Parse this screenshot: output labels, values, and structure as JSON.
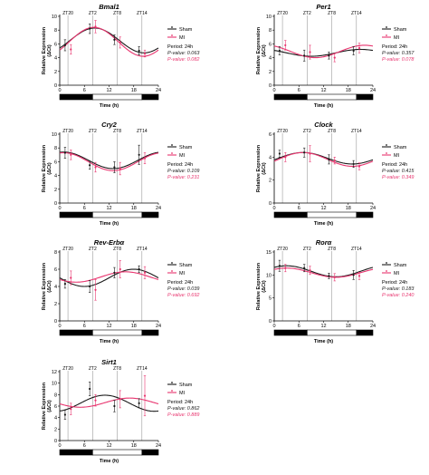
{
  "colors": {
    "sham": "#1a1a1a",
    "mi": "#e8356f"
  },
  "chart_data": [
    {
      "type": "line",
      "title": "Bmal1",
      "ylabel": "Relative Expression",
      "ylabel_unit": "(ΔCt)",
      "xlabel": "Time (h)",
      "xlim": [
        0,
        24
      ],
      "ylim": [
        0,
        10
      ],
      "xticks": [
        "0",
        "6",
        "12",
        "18",
        "24"
      ],
      "yticks": [
        "0",
        "2",
        "4",
        "6",
        "8",
        "10"
      ],
      "zt_labels": [
        {
          "x": 2,
          "label": "ZT20"
        },
        {
          "x": 8,
          "label": "ZT2"
        },
        {
          "x": 14,
          "label": "ZT8"
        },
        {
          "x": 20,
          "label": "ZT14"
        }
      ],
      "light_dark_bar": [
        {
          "from": 0,
          "to": 8,
          "phase": "dark"
        },
        {
          "from": 8,
          "to": 20,
          "phase": "light"
        },
        {
          "from": 20,
          "to": 24,
          "phase": "dark"
        }
      ],
      "legend": {
        "sham": "Sham",
        "mi": "MI",
        "period": "Period: 24h",
        "p_sham": "P-value: 0.063",
        "p_mi": "P-value: 0.082"
      },
      "series": [
        {
          "name": "Sham",
          "color": "#1a1a1a",
          "fit": {
            "mesor": 6.5,
            "amplitude": 1.8,
            "peak": 8.5
          },
          "points": [
            {
              "x": 2,
              "y": 5.8,
              "err": 0.8
            },
            {
              "x": 8,
              "y": 8.2,
              "err": 0.7
            },
            {
              "x": 14,
              "y": 6.6,
              "err": 0.7
            },
            {
              "x": 20,
              "y": 5.0,
              "err": 0.6
            }
          ]
        },
        {
          "name": "MI",
          "color": "#e8356f",
          "fit": {
            "mesor": 6.3,
            "amplitude": 2.1,
            "peak": 8.3
          },
          "points": [
            {
              "x": 2,
              "y": 5.2,
              "err": 0.7
            },
            {
              "x": 8,
              "y": 8.5,
              "err": 0.9
            },
            {
              "x": 14,
              "y": 6.2,
              "err": 0.8
            },
            {
              "x": 20,
              "y": 4.6,
              "err": 0.5
            }
          ]
        }
      ]
    },
    {
      "type": "line",
      "title": "Per1",
      "ylabel": "Relative Expression",
      "ylabel_unit": "(ΔCt)",
      "xlabel": "Time (h)",
      "xlim": [
        0,
        24
      ],
      "ylim": [
        0,
        10
      ],
      "xticks": [
        "0",
        "6",
        "12",
        "18",
        "24"
      ],
      "yticks": [
        "0",
        "2",
        "4",
        "6",
        "8",
        "10"
      ],
      "zt_labels": [
        {
          "x": 2,
          "label": "ZT20"
        },
        {
          "x": 8,
          "label": "ZT2"
        },
        {
          "x": 14,
          "label": "ZT8"
        },
        {
          "x": 20,
          "label": "ZT14"
        }
      ],
      "light_dark_bar": [
        {
          "from": 0,
          "to": 8,
          "phase": "dark"
        },
        {
          "from": 8,
          "to": 20,
          "phase": "light"
        },
        {
          "from": 20,
          "to": 24,
          "phase": "dark"
        }
      ],
      "legend": {
        "sham": "Sham",
        "mi": "MI",
        "period": "Period: 24h",
        "p_sham": "P-value: 0.357",
        "p_mi": "P-value: 0.078"
      },
      "series": [
        {
          "name": "Sham",
          "color": "#1a1a1a",
          "fit": {
            "mesor": 4.7,
            "amplitude": 0.5,
            "peak": 21
          },
          "points": [
            {
              "x": 2,
              "y": 5.0,
              "err": 0.6
            },
            {
              "x": 8,
              "y": 4.3,
              "err": 0.8
            },
            {
              "x": 14,
              "y": 4.3,
              "err": 0.5
            },
            {
              "x": 20,
              "y": 5.0,
              "err": 0.6
            }
          ]
        },
        {
          "name": "MI",
          "color": "#e8356f",
          "fit": {
            "mesor": 4.9,
            "amplitude": 0.9,
            "peak": 22
          },
          "points": [
            {
              "x": 2,
              "y": 5.8,
              "err": 0.7
            },
            {
              "x": 8,
              "y": 4.8,
              "err": 1.0
            },
            {
              "x": 14,
              "y": 4.0,
              "err": 0.6
            },
            {
              "x": 20,
              "y": 5.4,
              "err": 0.7
            }
          ]
        }
      ]
    },
    {
      "type": "line",
      "title": "Cry2",
      "ylabel": "Relative Expression",
      "ylabel_unit": "(ΔCt)",
      "xlabel": "Time (h)",
      "xlim": [
        0,
        24
      ],
      "ylim": [
        0,
        10
      ],
      "xticks": [
        "0",
        "6",
        "12",
        "18",
        "24"
      ],
      "yticks": [
        "0",
        "2",
        "4",
        "6",
        "8",
        "10"
      ],
      "zt_labels": [
        {
          "x": 2,
          "label": "ZT20"
        },
        {
          "x": 8,
          "label": "ZT2"
        },
        {
          "x": 14,
          "label": "ZT8"
        },
        {
          "x": 20,
          "label": "ZT14"
        }
      ],
      "light_dark_bar": [
        {
          "from": 0,
          "to": 8,
          "phase": "dark"
        },
        {
          "from": 8,
          "to": 20,
          "phase": "light"
        },
        {
          "from": 20,
          "to": 24,
          "phase": "dark"
        }
      ],
      "legend": {
        "sham": "Sham",
        "mi": "MI",
        "period": "Period: 24h",
        "p_sham": "P-value: 0.109",
        "p_mi": "P-value: 0.231"
      },
      "series": [
        {
          "name": "Sham",
          "color": "#1a1a1a",
          "fit": {
            "mesor": 6.2,
            "amplitude": 1.2,
            "peak": 1
          },
          "points": [
            {
              "x": 2,
              "y": 7.3,
              "err": 0.8
            },
            {
              "x": 8,
              "y": 5.5,
              "err": 0.6
            },
            {
              "x": 14,
              "y": 5.2,
              "err": 0.8
            },
            {
              "x": 20,
              "y": 7.0,
              "err": 1.4
            }
          ]
        },
        {
          "name": "MI",
          "color": "#e8356f",
          "fit": {
            "mesor": 6.0,
            "amplitude": 1.3,
            "peak": 1
          },
          "points": [
            {
              "x": 2,
              "y": 7.0,
              "err": 0.7
            },
            {
              "x": 8,
              "y": 5.2,
              "err": 0.7
            },
            {
              "x": 14,
              "y": 5.0,
              "err": 0.9
            },
            {
              "x": 20,
              "y": 6.5,
              "err": 0.8
            }
          ]
        }
      ]
    },
    {
      "type": "line",
      "title": "Clock",
      "ylabel": "Relative Expression",
      "ylabel_unit": "(ΔCt)",
      "xlabel": "Time (h)",
      "xlim": [
        0,
        24
      ],
      "ylim": [
        0,
        6
      ],
      "xticks": [
        "0",
        "6",
        "12",
        "18",
        "24"
      ],
      "yticks": [
        "0",
        "2",
        "4",
        "6"
      ],
      "zt_labels": [
        {
          "x": 2,
          "label": "ZT20"
        },
        {
          "x": 8,
          "label": "ZT2"
        },
        {
          "x": 14,
          "label": "ZT8"
        },
        {
          "x": 20,
          "label": "ZT14"
        }
      ],
      "light_dark_bar": [
        {
          "from": 0,
          "to": 8,
          "phase": "dark"
        },
        {
          "from": 8,
          "to": 20,
          "phase": "light"
        },
        {
          "from": 20,
          "to": 24,
          "phase": "dark"
        }
      ],
      "legend": {
        "sham": "Sham",
        "mi": "MI",
        "period": "Period: 24h",
        "p_sham": "P-value: 0.415",
        "p_mi": "P-value: 0.349"
      },
      "series": [
        {
          "name": "Sham",
          "color": "#1a1a1a",
          "fit": {
            "mesor": 3.9,
            "amplitude": 0.5,
            "peak": 7
          },
          "points": [
            {
              "x": 2,
              "y": 4.3,
              "err": 0.3
            },
            {
              "x": 8,
              "y": 4.4,
              "err": 0.4
            },
            {
              "x": 14,
              "y": 3.8,
              "err": 0.4
            },
            {
              "x": 20,
              "y": 3.4,
              "err": 0.3
            }
          ]
        },
        {
          "name": "MI",
          "color": "#e8356f",
          "fit": {
            "mesor": 3.8,
            "amplitude": 0.6,
            "peak": 7
          },
          "points": [
            {
              "x": 2,
              "y": 4.0,
              "err": 0.4
            },
            {
              "x": 8,
              "y": 4.3,
              "err": 0.7
            },
            {
              "x": 14,
              "y": 3.7,
              "err": 0.3
            },
            {
              "x": 20,
              "y": 3.2,
              "err": 0.3
            }
          ]
        }
      ]
    },
    {
      "type": "line",
      "title": "Rev-Erbα",
      "ylabel": "Relative Expression",
      "ylabel_unit": "(ΔCt)",
      "xlabel": "Time (h)",
      "xlim": [
        0,
        24
      ],
      "ylim": [
        0,
        8
      ],
      "xticks": [
        "0",
        "6",
        "12",
        "18",
        "24"
      ],
      "yticks": [
        "0",
        "2",
        "4",
        "6",
        "8"
      ],
      "zt_labels": [
        {
          "x": 2,
          "label": "ZT20"
        },
        {
          "x": 8,
          "label": "ZT2"
        },
        {
          "x": 14,
          "label": "ZT8"
        },
        {
          "x": 20,
          "label": "ZT14"
        }
      ],
      "light_dark_bar": [
        {
          "from": 0,
          "to": 8,
          "phase": "dark"
        },
        {
          "from": 8,
          "to": 20,
          "phase": "light"
        },
        {
          "from": 20,
          "to": 24,
          "phase": "dark"
        }
      ],
      "legend": {
        "sham": "Sham",
        "mi": "MI",
        "period": "Period: 24h",
        "p_sham": "P-value: 0.039",
        "p_mi": "P-value: 0.692"
      },
      "series": [
        {
          "name": "Sham",
          "color": "#1a1a1a",
          "fit": {
            "mesor": 5.0,
            "amplitude": 1.0,
            "peak": 18
          },
          "points": [
            {
              "x": 2,
              "y": 4.3,
              "err": 0.5
            },
            {
              "x": 8,
              "y": 4.0,
              "err": 0.7
            },
            {
              "x": 14,
              "y": 5.6,
              "err": 0.6
            },
            {
              "x": 20,
              "y": 6.0,
              "err": 0.4
            }
          ]
        },
        {
          "name": "MI",
          "color": "#e8356f",
          "fit": {
            "mesor": 5.1,
            "amplitude": 0.6,
            "peak": 16
          },
          "points": [
            {
              "x": 2,
              "y": 5.0,
              "err": 0.8
            },
            {
              "x": 8,
              "y": 3.6,
              "err": 1.2
            },
            {
              "x": 14,
              "y": 6.0,
              "err": 1.0
            },
            {
              "x": 20,
              "y": 5.6,
              "err": 0.7
            }
          ]
        }
      ]
    },
    {
      "type": "line",
      "title": "Rorα",
      "ylabel": "Relative Expression",
      "ylabel_unit": "(ΔCt)",
      "xlabel": "Time (h)",
      "xlim": [
        0,
        24
      ],
      "ylim": [
        0,
        15
      ],
      "xticks": [
        "0",
        "6",
        "12",
        "18",
        "24"
      ],
      "yticks": [
        "0",
        "5",
        "10",
        "15"
      ],
      "zt_labels": [
        {
          "x": 2,
          "label": "ZT20"
        },
        {
          "x": 8,
          "label": "ZT2"
        },
        {
          "x": 14,
          "label": "ZT8"
        },
        {
          "x": 20,
          "label": "ZT14"
        }
      ],
      "light_dark_bar": [
        {
          "from": 0,
          "to": 8,
          "phase": "dark"
        },
        {
          "from": 8,
          "to": 20,
          "phase": "light"
        },
        {
          "from": 20,
          "to": 24,
          "phase": "dark"
        }
      ],
      "legend": {
        "sham": "Sham",
        "mi": "MI",
        "period": "Period: 24h",
        "p_sham": "P-value: 0.183",
        "p_mi": "P-value: 0.240"
      },
      "series": [
        {
          "name": "Sham",
          "color": "#1a1a1a",
          "fit": {
            "mesor": 10.8,
            "amplitude": 1.2,
            "peak": 3
          },
          "points": [
            {
              "x": 2,
              "y": 12.0,
              "err": 1.2
            },
            {
              "x": 8,
              "y": 11.5,
              "err": 0.8
            },
            {
              "x": 14,
              "y": 9.8,
              "err": 0.6
            },
            {
              "x": 20,
              "y": 10.0,
              "err": 1.0
            }
          ]
        },
        {
          "name": "MI",
          "color": "#e8356f",
          "fit": {
            "mesor": 10.5,
            "amplitude": 1.0,
            "peak": 3
          },
          "points": [
            {
              "x": 2,
              "y": 11.5,
              "err": 0.8
            },
            {
              "x": 8,
              "y": 11.0,
              "err": 0.9
            },
            {
              "x": 14,
              "y": 9.5,
              "err": 0.8
            },
            {
              "x": 20,
              "y": 9.8,
              "err": 0.8
            }
          ]
        }
      ]
    },
    {
      "type": "line",
      "title": "Sirt1",
      "ylabel": "Relative Expression",
      "ylabel_unit": "(ΔCt)",
      "xlabel": "Time (h)",
      "xlim": [
        0,
        24
      ],
      "ylim": [
        0,
        12
      ],
      "xticks": [
        "0",
        "6",
        "12",
        "18",
        "24"
      ],
      "yticks": [
        "0",
        "2",
        "4",
        "6",
        "8",
        "10",
        "12"
      ],
      "zt_labels": [
        {
          "x": 2,
          "label": "ZT20"
        },
        {
          "x": 8,
          "label": "ZT2"
        },
        {
          "x": 14,
          "label": "ZT8"
        },
        {
          "x": 20,
          "label": "ZT14"
        }
      ],
      "light_dark_bar": [
        {
          "from": 0,
          "to": 8,
          "phase": "dark"
        },
        {
          "from": 8,
          "to": 20,
          "phase": "light"
        },
        {
          "from": 20,
          "to": 24,
          "phase": "dark"
        }
      ],
      "legend": {
        "sham": "Sham",
        "mi": "MI",
        "period": "Period: 24h",
        "p_sham": "P-value: 0.862",
        "p_mi": "P-value: 0.889"
      },
      "series": [
        {
          "name": "Sham",
          "color": "#1a1a1a",
          "fit": {
            "mesor": 6.5,
            "amplitude": 1.4,
            "peak": 11
          },
          "points": [
            {
              "x": 2,
              "y": 4.5,
              "err": 0.8
            },
            {
              "x": 8,
              "y": 9.0,
              "err": 1.2
            },
            {
              "x": 14,
              "y": 6.0,
              "err": 1.0
            },
            {
              "x": 20,
              "y": 6.5,
              "err": 0.8
            }
          ]
        },
        {
          "name": "MI",
          "color": "#e8356f",
          "fit": {
            "mesor": 6.6,
            "amplitude": 0.8,
            "peak": 17
          },
          "points": [
            {
              "x": 2,
              "y": 5.5,
              "err": 1.0
            },
            {
              "x": 8,
              "y": 7.0,
              "err": 1.0
            },
            {
              "x": 14,
              "y": 7.2,
              "err": 1.5
            },
            {
              "x": 20,
              "y": 7.8,
              "err": 3.5
            }
          ]
        }
      ]
    }
  ]
}
